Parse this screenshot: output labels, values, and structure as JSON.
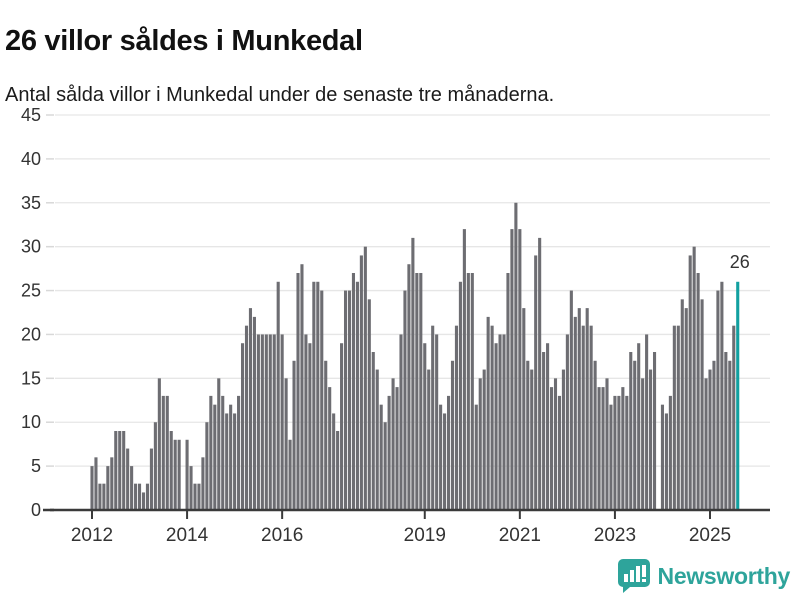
{
  "header": {
    "title": "26 villor såldes i Munkedal",
    "subtitle": "Antal sålda villor i Munkedal under de senaste tre månaderna."
  },
  "chart_data": {
    "type": "bar",
    "title": "26 villor såldes i Munkedal",
    "subtitle": "Antal sålda villor i Munkedal under de senaste tre månaderna.",
    "xlabel": "",
    "ylabel": "",
    "ylim": [
      0,
      45
    ],
    "grid": "horizontal",
    "x_start_month": "2012-01",
    "x_end_month": "2025-08",
    "x_tick_labels": [
      "2012",
      "2014",
      "2016",
      "2019",
      "2021",
      "2023",
      "2025"
    ],
    "x_tick_month_index": [
      0,
      24,
      48,
      84,
      108,
      132,
      156
    ],
    "y_ticks": [
      0,
      5,
      10,
      15,
      20,
      25,
      30,
      35,
      40,
      45
    ],
    "values": [
      5,
      6,
      3,
      3,
      5,
      6,
      9,
      9,
      9,
      7,
      5,
      3,
      3,
      2,
      3,
      7,
      10,
      15,
      13,
      13,
      9,
      8,
      8,
      0,
      8,
      5,
      3,
      3,
      6,
      10,
      13,
      12,
      15,
      13,
      11,
      12,
      11,
      13,
      19,
      21,
      23,
      22,
      20,
      20,
      20,
      20,
      20,
      26,
      20,
      15,
      8,
      17,
      27,
      28,
      20,
      19,
      26,
      26,
      25,
      17,
      14,
      11,
      9,
      19,
      25,
      25,
      27,
      26,
      29,
      30,
      24,
      18,
      16,
      12,
      10,
      13,
      15,
      14,
      20,
      25,
      28,
      31,
      27,
      27,
      19,
      16,
      21,
      20,
      12,
      11,
      13,
      17,
      21,
      26,
      32,
      27,
      27,
      12,
      15,
      16,
      22,
      21,
      19,
      20,
      20,
      27,
      32,
      35,
      32,
      23,
      17,
      16,
      29,
      31,
      18,
      19,
      14,
      15,
      13,
      16,
      20,
      25,
      22,
      23,
      21,
      23,
      21,
      17,
      14,
      14,
      15,
      12,
      13,
      13,
      14,
      13,
      18,
      17,
      19,
      15,
      20,
      16,
      18,
      0,
      12,
      11,
      13,
      21,
      21,
      24,
      23,
      29,
      30,
      27,
      24,
      15,
      16,
      17,
      25,
      26,
      18,
      17,
      21,
      26
    ],
    "highlight_index": 163,
    "annotation": {
      "text": "26"
    },
    "colors": {
      "bar": "#6d6d72",
      "highlight": "#12a0a0",
      "grid": "#e6e6e6",
      "axis": "#3a3a3a",
      "tick_label": "#333333",
      "y_tick_dash": "#d8d8d8",
      "annotation_text": "#333333"
    }
  },
  "footer": {
    "brand": "Newsworthy",
    "logo_color": "#2ea49b",
    "logo_icon": "bar-chart-speech-bubble-icon"
  }
}
